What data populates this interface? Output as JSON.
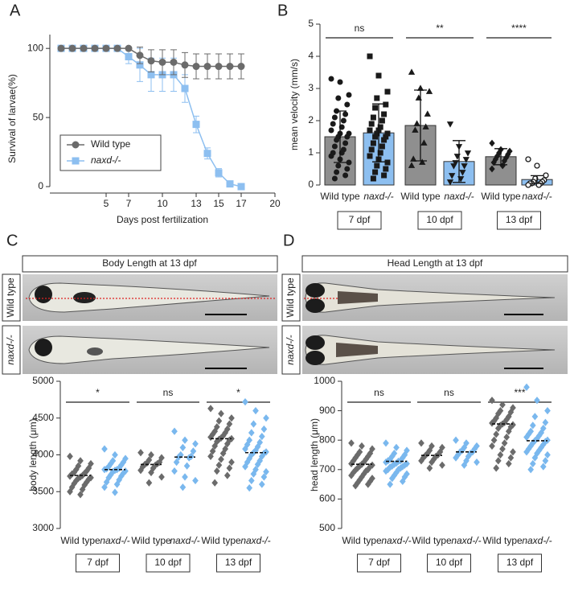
{
  "panel_labels": [
    "A",
    "B",
    "C",
    "D"
  ],
  "images": [
    {
      "title": "Body Length at 13 dpf",
      "rows": [
        "Wild type",
        "naxd-/-"
      ]
    },
    {
      "title": "Head Length at 13 dpf",
      "rows": [
        "Wild type",
        "naxd-/-"
      ]
    }
  ],
  "chart_data": [
    {
      "type": "line",
      "x_label": "Days post fertilization",
      "y_label": "Survival of larvae(%)",
      "x": [
        1,
        2,
        3,
        4,
        5,
        6,
        7,
        8,
        9,
        10,
        11,
        12,
        13,
        14,
        15,
        16,
        17
      ],
      "series": [
        {
          "name": "Wild type",
          "color": "#6b6b6b",
          "marker": "circle",
          "values": [
            100,
            100,
            100,
            100,
            100,
            100,
            100,
            95,
            91,
            90,
            90,
            88,
            87,
            87,
            87,
            87,
            87
          ],
          "errors": [
            0,
            0,
            0,
            0,
            0,
            0,
            0,
            6,
            8,
            9,
            9,
            9,
            9,
            9,
            9,
            9,
            9
          ]
        },
        {
          "name": "naxd-/-",
          "color": "#8dbff0",
          "marker": "square",
          "values": [
            100,
            100,
            100,
            100,
            100,
            100,
            94,
            88,
            81,
            81,
            81,
            71,
            45,
            24,
            10,
            2,
            0
          ],
          "errors": [
            0,
            0,
            0,
            0,
            0,
            0,
            5,
            12,
            12,
            12,
            12,
            10,
            6,
            4,
            3,
            1,
            0
          ]
        }
      ],
      "xlim": [
        0,
        20
      ],
      "xticks": [
        5,
        7,
        10,
        13,
        15,
        17,
        20
      ],
      "ylim": [
        0,
        110
      ],
      "yticks": [
        0,
        50,
        100
      ],
      "legend": "lower left"
    },
    {
      "type": "bar",
      "y_label": "mean velocity (mm/s)",
      "categories": [
        "Wild type",
        "naxd-/-",
        "Wild type",
        "naxd-/-",
        "Wild type",
        "naxd-/-"
      ],
      "groups": [
        "7 dpf",
        "10 dpf",
        "13 dpf"
      ],
      "annotations": [
        "ns",
        "**",
        "****"
      ],
      "colors": [
        "#8f8f8f",
        "#8dbff0",
        "#8f8f8f",
        "#8dbff0",
        "#8f8f8f",
        "#8dbff0"
      ],
      "point_color": "#1a1a1a",
      "markers": [
        "circle",
        "square",
        "triangle",
        "triangle-down",
        "diamond",
        "circle-open"
      ],
      "values": [
        1.5,
        1.62,
        1.85,
        0.73,
        0.88,
        0.17
      ],
      "errors": [
        0.8,
        0.9,
        1.1,
        0.65,
        0.25,
        0.12
      ],
      "points": [
        [
          3.3,
          3.2,
          2.8,
          2.7,
          2.5,
          2.3,
          2.2,
          2.1,
          2.0,
          1.9,
          1.8,
          1.7,
          1.6,
          1.6,
          1.5,
          1.5,
          1.4,
          1.3,
          1.2,
          1.1,
          1.0,
          1.0,
          0.9,
          0.8,
          0.7,
          0.6,
          0.5,
          0.4,
          0.3,
          0.2
        ],
        [
          4.0,
          3.4,
          2.9,
          2.7,
          2.5,
          2.4,
          2.2,
          2.1,
          2.0,
          1.9,
          1.8,
          1.7,
          1.7,
          1.6,
          1.6,
          1.5,
          1.5,
          1.4,
          1.3,
          1.2,
          1.1,
          1.0,
          0.9,
          0.8,
          0.7,
          0.6,
          0.5,
          0.4,
          0.3,
          0.2
        ],
        [
          3.5,
          3.0,
          2.9,
          2.7,
          2.2,
          1.9,
          1.8,
          1.7,
          1.3,
          0.8,
          0.7,
          0.6
        ],
        [
          1.9,
          1.2,
          1.0,
          0.9,
          0.8,
          0.7,
          0.6,
          0.6,
          0.4,
          0.3,
          0.2,
          0.1
        ],
        [
          1.3,
          1.1,
          1.05,
          1.0,
          0.95,
          0.9,
          0.85,
          0.8,
          0.75,
          0.7,
          0.6,
          0.5
        ],
        [
          0.8,
          0.6,
          0.3,
          0.2,
          0.15,
          0.1,
          0.1,
          0.05,
          0.05,
          0.05,
          0.0,
          0.0
        ]
      ],
      "ylim": [
        0,
        5
      ],
      "yticks": [
        0,
        1,
        2,
        3,
        4,
        5
      ]
    },
    {
      "type": "dot",
      "y_label": "body length (μm)",
      "categories": [
        "Wild type",
        "naxd-/-",
        "Wild type",
        "naxd-/-",
        "Wild type",
        "naxd-/-"
      ],
      "groups": [
        "7 dpf",
        "10 dpf",
        "13 dpf"
      ],
      "annotations": [
        "*",
        "ns",
        "*"
      ],
      "colors": [
        "#6b6b6b",
        "#7ab8ee",
        "#6b6b6b",
        "#7ab8ee",
        "#6b6b6b",
        "#7ab8ee"
      ],
      "marker": "diamond",
      "medians": [
        3720,
        3800,
        3870,
        3970,
        4220,
        4030
      ],
      "points": [
        [
          3980,
          3920,
          3880,
          3850,
          3820,
          3800,
          3780,
          3760,
          3750,
          3740,
          3720,
          3710,
          3700,
          3690,
          3680,
          3670,
          3650,
          3630,
          3610,
          3590,
          3560,
          3530,
          3500,
          3460
        ],
        [
          4080,
          4000,
          3950,
          3920,
          3900,
          3880,
          3860,
          3840,
          3820,
          3810,
          3800,
          3800,
          3790,
          3780,
          3770,
          3750,
          3730,
          3710,
          3690,
          3660,
          3630,
          3600,
          3560,
          3490
        ],
        [
          4030,
          4000,
          3960,
          3930,
          3900,
          3890,
          3880,
          3870,
          3860,
          3840,
          3820,
          3790,
          3760,
          3700,
          3620
        ],
        [
          4320,
          4200,
          4150,
          4100,
          4050,
          4000,
          3980,
          3970,
          3960,
          3900,
          3850,
          3780,
          3700,
          3650,
          3560
        ],
        [
          4630,
          4560,
          4500,
          4460,
          4420,
          4380,
          4350,
          4320,
          4300,
          4280,
          4260,
          4240,
          4230,
          4220,
          4210,
          4200,
          4180,
          4150,
          4120,
          4080,
          4050,
          4020,
          3980,
          3940,
          3900,
          3860,
          3820,
          3780,
          3720,
          3620
        ],
        [
          4720,
          4600,
          4500,
          4420,
          4350,
          4300,
          4250,
          4200,
          4170,
          4140,
          4110,
          4080,
          4060,
          4040,
          4030,
          4020,
          4000,
          3980,
          3950,
          3920,
          3900,
          3870,
          3840,
          3800,
          3770,
          3740,
          3700,
          3650,
          3600,
          3550
        ]
      ],
      "ylim": [
        3000,
        5000
      ],
      "yticks": [
        3000,
        3500,
        4000,
        4500,
        5000
      ]
    },
    {
      "type": "dot",
      "y_label": "head length (μm)",
      "categories": [
        "Wild type",
        "naxd-/-",
        "Wild type",
        "naxd-/-",
        "Wild type",
        "naxd-/-"
      ],
      "groups": [
        "7 dpf",
        "10 dpf",
        "13 dpf"
      ],
      "annotations": [
        "ns",
        "ns",
        "***"
      ],
      "colors": [
        "#6b6b6b",
        "#7ab8ee",
        "#6b6b6b",
        "#7ab8ee",
        "#6b6b6b",
        "#7ab8ee"
      ],
      "marker": "diamond",
      "medians": [
        718,
        728,
        748,
        760,
        855,
        798
      ],
      "points": [
        [
          790,
          780,
          770,
          760,
          755,
          750,
          745,
          740,
          735,
          730,
          725,
          720,
          718,
          715,
          712,
          710,
          705,
          700,
          698,
          695,
          690,
          685,
          680,
          675,
          670,
          665,
          660,
          655,
          650,
          645
        ],
        [
          790,
          775,
          765,
          755,
          750,
          745,
          740,
          735,
          730,
          730,
          728,
          725,
          722,
          720,
          718,
          715,
          712,
          710,
          708,
          705,
          700,
          700,
          695,
          690,
          685,
          680,
          675,
          670,
          660,
          650
        ],
        [
          790,
          780,
          775,
          765,
          760,
          755,
          750,
          748,
          745,
          740,
          735,
          730,
          725,
          715,
          705
        ],
        [
          800,
          790,
          780,
          775,
          770,
          765,
          760,
          760,
          755,
          750,
          745,
          740,
          730,
          725,
          715
        ],
        [
          935,
          920,
          910,
          900,
          895,
          890,
          880,
          875,
          870,
          865,
          860,
          858,
          855,
          852,
          850,
          845,
          840,
          830,
          820,
          810,
          800,
          790,
          780,
          770,
          760,
          750,
          740,
          730,
          720,
          705
        ],
        [
          980,
          935,
          900,
          880,
          860,
          850,
          840,
          830,
          825,
          820,
          815,
          810,
          805,
          800,
          798,
          795,
          790,
          785,
          780,
          775,
          770,
          765,
          760,
          755,
          750,
          740,
          730,
          720,
          710,
          700
        ]
      ],
      "ylim": [
        500,
        1000
      ],
      "yticks": [
        500,
        600,
        700,
        800,
        900,
        1000
      ]
    }
  ]
}
